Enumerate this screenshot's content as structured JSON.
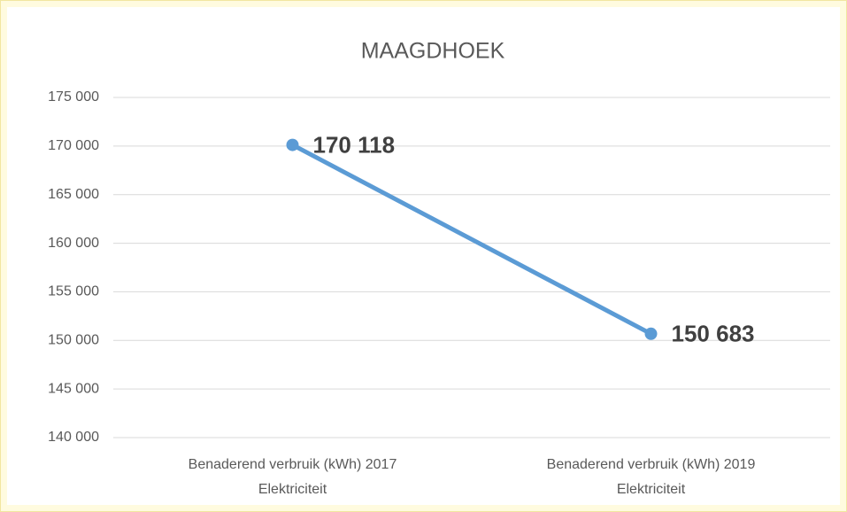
{
  "chart_data": {
    "type": "line",
    "title": "MAAGDHOEK",
    "categories": [
      [
        "Benaderend verbruik (kWh) 2017",
        "Elektriciteit"
      ],
      [
        "Benaderend verbruik (kWh) 2019",
        "Elektriciteit"
      ]
    ],
    "series": [
      {
        "color": "#5b9bd5",
        "values": [
          170118,
          150683
        ],
        "value_labels": [
          "170 118",
          "150 683"
        ]
      }
    ],
    "ylim": [
      140000,
      175000
    ],
    "yticks": [
      {
        "value": 140000,
        "label": "140 000"
      },
      {
        "value": 145000,
        "label": "145 000"
      },
      {
        "value": 150000,
        "label": "150 000"
      },
      {
        "value": 155000,
        "label": "155 000"
      },
      {
        "value": 160000,
        "label": "160 000"
      },
      {
        "value": 165000,
        "label": "165 000"
      },
      {
        "value": 170000,
        "label": "170 000"
      },
      {
        "value": 175000,
        "label": "175 000"
      }
    ],
    "grid": true
  }
}
